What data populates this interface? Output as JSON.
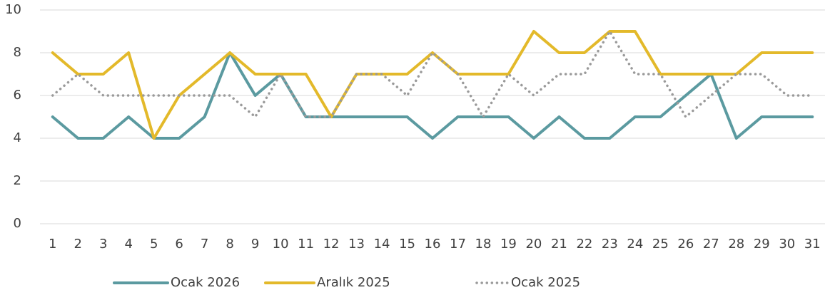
{
  "chart_data": {
    "type": "line",
    "categories": [
      "1",
      "2",
      "3",
      "4",
      "5",
      "6",
      "7",
      "8",
      "9",
      "10",
      "11",
      "12",
      "13",
      "14",
      "15",
      "16",
      "17",
      "18",
      "19",
      "20",
      "21",
      "22",
      "23",
      "24",
      "25",
      "26",
      "27",
      "28",
      "29",
      "30",
      "31"
    ],
    "series": [
      {
        "name": "Ocak 2026",
        "color": "#5b9aa0",
        "style": "solid",
        "values": [
          5,
          4,
          4,
          5,
          4,
          4,
          5,
          8,
          6,
          7,
          5,
          5,
          5,
          5,
          5,
          4,
          5,
          5,
          5,
          4,
          5,
          4,
          4,
          5,
          5,
          6,
          7,
          4,
          5,
          5,
          5
        ]
      },
      {
        "name": "Aralık 2025",
        "color": "#e3b92a",
        "style": "solid",
        "values": [
          8,
          7,
          7,
          8,
          4,
          6,
          7,
          8,
          7,
          7,
          7,
          5,
          7,
          7,
          7,
          8,
          7,
          7,
          7,
          9,
          8,
          8,
          9,
          9,
          7,
          7,
          7,
          7,
          8,
          8,
          8
        ]
      },
      {
        "name": "Ocak 2025",
        "color": "#9a9a9a",
        "style": "dotted",
        "values": [
          6,
          7,
          6,
          6,
          6,
          6,
          6,
          6,
          5,
          7,
          5,
          5,
          7,
          7,
          6,
          8,
          7,
          5,
          7,
          6,
          7,
          7,
          9,
          7,
          7,
          5,
          6,
          7,
          7,
          6,
          6
        ]
      }
    ],
    "ylim": [
      0,
      10
    ],
    "yticks": [
      0,
      2,
      4,
      6,
      8,
      10
    ],
    "grid": true,
    "legend": "bottom"
  }
}
